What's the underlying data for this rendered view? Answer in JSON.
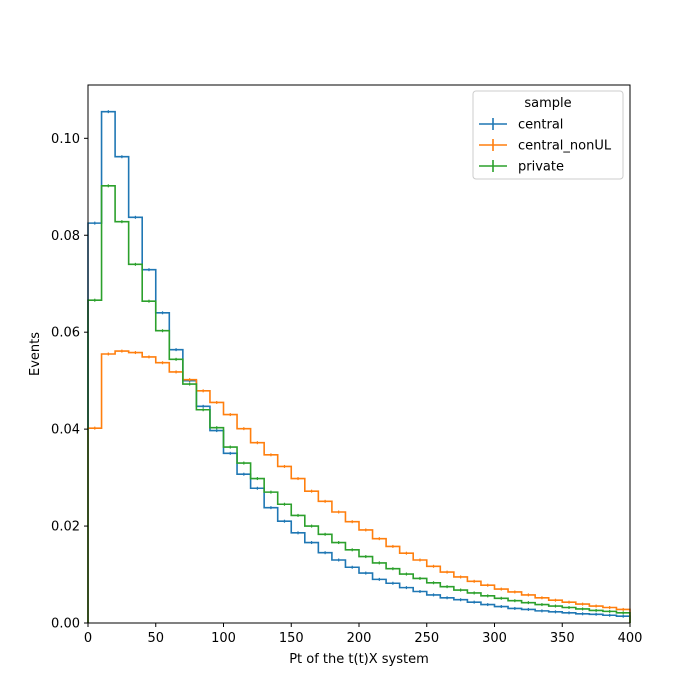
{
  "chart_data": {
    "type": "line",
    "style": "step-histogram",
    "xlabel": "Pt of the t(t)X system",
    "ylabel": "Events",
    "xlim": [
      0,
      400
    ],
    "ylim": [
      0,
      0.111
    ],
    "x_ticks": [
      0,
      50,
      100,
      150,
      200,
      250,
      300,
      350,
      400
    ],
    "y_ticks": [
      0.0,
      0.02,
      0.04,
      0.06,
      0.08,
      0.1
    ],
    "x_tick_labels": [
      "0",
      "50",
      "100",
      "150",
      "200",
      "250",
      "300",
      "350",
      "400"
    ],
    "y_tick_labels": [
      "0.00",
      "0.02",
      "0.04",
      "0.06",
      "0.08",
      "0.10"
    ],
    "grid": false,
    "legend": {
      "title": "sample",
      "placement": "top-right"
    },
    "bin_edges": [
      0,
      10,
      20,
      30,
      40,
      50,
      60,
      70,
      80,
      90,
      100,
      110,
      120,
      130,
      140,
      150,
      160,
      170,
      180,
      190,
      200,
      210,
      220,
      230,
      240,
      250,
      260,
      270,
      280,
      290,
      300,
      310,
      320,
      330,
      340,
      350,
      360,
      370,
      380,
      390,
      400
    ],
    "series": [
      {
        "name": "central",
        "color": "#1f77b4",
        "values": [
          0.0825,
          0.1055,
          0.0962,
          0.0837,
          0.0729,
          0.064,
          0.0564,
          0.05,
          0.0447,
          0.0397,
          0.035,
          0.0307,
          0.0278,
          0.0238,
          0.021,
          0.0186,
          0.0166,
          0.0145,
          0.013,
          0.0115,
          0.0103,
          0.009,
          0.0082,
          0.0073,
          0.0065,
          0.0058,
          0.0052,
          0.0048,
          0.0043,
          0.0038,
          0.0034,
          0.003,
          0.0028,
          0.0025,
          0.0023,
          0.0021,
          0.0019,
          0.0018,
          0.0016,
          0.0014
        ]
      },
      {
        "name": "central_nonUL",
        "color": "#ff7f0e",
        "values": [
          0.0402,
          0.0555,
          0.0561,
          0.0558,
          0.0549,
          0.0537,
          0.0518,
          0.0502,
          0.0479,
          0.0455,
          0.043,
          0.0401,
          0.0372,
          0.0347,
          0.0323,
          0.0298,
          0.0272,
          0.0251,
          0.0229,
          0.0209,
          0.0192,
          0.0174,
          0.0158,
          0.0144,
          0.013,
          0.0117,
          0.0105,
          0.0095,
          0.0086,
          0.0078,
          0.007,
          0.0064,
          0.0058,
          0.0052,
          0.0047,
          0.0043,
          0.0039,
          0.0035,
          0.0032,
          0.0028
        ]
      },
      {
        "name": "private",
        "color": "#2ca02c",
        "values": [
          0.0666,
          0.0902,
          0.0828,
          0.074,
          0.0664,
          0.0603,
          0.0544,
          0.0493,
          0.044,
          0.0403,
          0.0363,
          0.033,
          0.0298,
          0.027,
          0.0245,
          0.0222,
          0.02,
          0.0183,
          0.0166,
          0.0151,
          0.0137,
          0.0124,
          0.0112,
          0.0101,
          0.0092,
          0.0083,
          0.0075,
          0.0068,
          0.0062,
          0.0056,
          0.0051,
          0.0046,
          0.0042,
          0.0038,
          0.0035,
          0.0032,
          0.0029,
          0.0026,
          0.0024,
          0.0021
        ]
      }
    ]
  }
}
